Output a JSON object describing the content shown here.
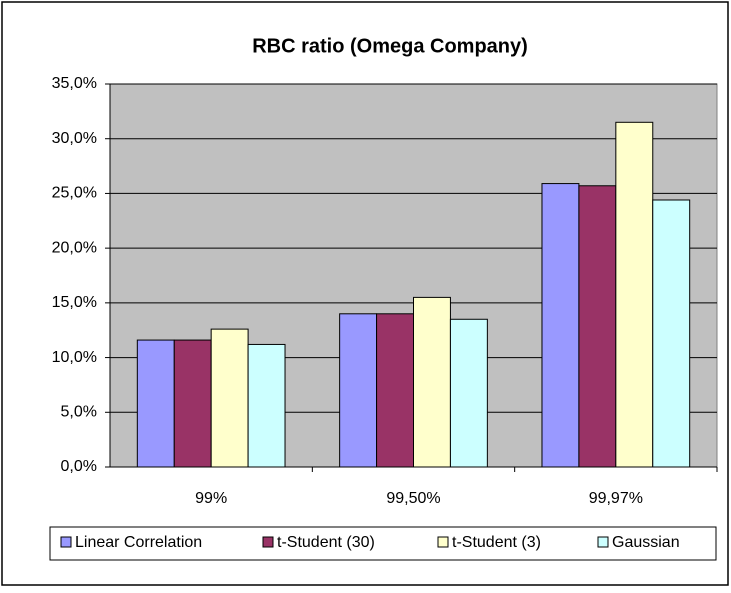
{
  "chart_data": {
    "type": "bar",
    "title": "RBC ratio (Omega Company)",
    "categories": [
      "99%",
      "99,50%",
      "99,97%"
    ],
    "series": [
      {
        "name": "Linear Correlation",
        "color": "#9999ff",
        "values": [
          11.6,
          14.0,
          25.9
        ]
      },
      {
        "name": "t-Student (30)",
        "color": "#993366",
        "values": [
          11.6,
          14.0,
          25.7
        ]
      },
      {
        "name": "t-Student (3)",
        "color": "#ffffcc",
        "values": [
          12.6,
          15.5,
          31.5
        ]
      },
      {
        "name": "Gaussian",
        "color": "#ccffff",
        "values": [
          11.2,
          13.5,
          24.4
        ]
      }
    ],
    "ylim": [
      0,
      35
    ],
    "yticks": [
      {
        "value": 0,
        "label": "0,0%"
      },
      {
        "value": 5,
        "label": "5,0%"
      },
      {
        "value": 10,
        "label": "10,0%"
      },
      {
        "value": 15,
        "label": "15,0%"
      },
      {
        "value": 20,
        "label": "20,0%"
      },
      {
        "value": 25,
        "label": "25,0%"
      },
      {
        "value": 30,
        "label": "30,0%"
      },
      {
        "value": 35,
        "label": "35,0%"
      }
    ],
    "grid": true,
    "legend": "bottom"
  }
}
